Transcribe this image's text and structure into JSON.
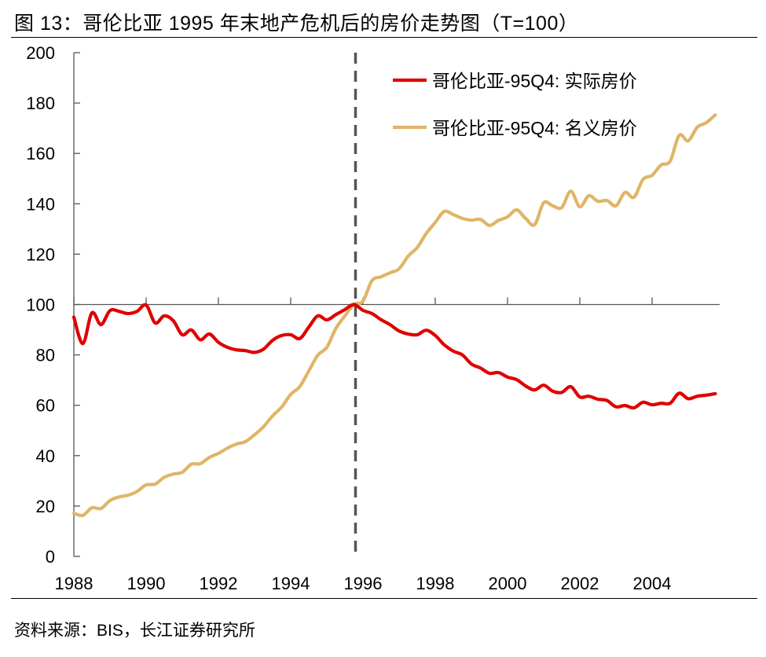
{
  "title": "图 13：哥伦比亚 1995 年末地产危机后的房价走势图（T=100）",
  "source": "资料来源：BIS，长江证券研究所",
  "chart_data": {
    "type": "line",
    "title": "",
    "xlabel": "",
    "ylabel": "",
    "ylim": [
      0,
      200
    ],
    "yticks": [
      "0",
      "20",
      "40",
      "60",
      "80",
      "100",
      "120",
      "140",
      "160",
      "180",
      "200"
    ],
    "xticks": [
      "1988",
      "1990",
      "1992",
      "1994",
      "1996",
      "1998",
      "2000",
      "2002",
      "2004"
    ],
    "x_axis_crosses_y_at": 100,
    "reference_line": {
      "x": "1995Q4",
      "style": "dashed",
      "color": "#555555"
    },
    "grid": false,
    "legend_position": "top-right",
    "x": [
      "1988Q1",
      "1988Q2",
      "1988Q3",
      "1988Q4",
      "1989Q1",
      "1989Q2",
      "1989Q3",
      "1989Q4",
      "1990Q1",
      "1990Q2",
      "1990Q3",
      "1990Q4",
      "1991Q1",
      "1991Q2",
      "1991Q3",
      "1991Q4",
      "1992Q1",
      "1992Q2",
      "1992Q3",
      "1992Q4",
      "1993Q1",
      "1993Q2",
      "1993Q3",
      "1993Q4",
      "1994Q1",
      "1994Q2",
      "1994Q3",
      "1994Q4",
      "1995Q1",
      "1995Q2",
      "1995Q3",
      "1995Q4",
      "1996Q1",
      "1996Q2",
      "1996Q3",
      "1996Q4",
      "1997Q1",
      "1997Q2",
      "1997Q3",
      "1997Q4",
      "1998Q1",
      "1998Q2",
      "1998Q3",
      "1998Q4",
      "1999Q1",
      "1999Q2",
      "1999Q3",
      "1999Q4",
      "2000Q1",
      "2000Q2",
      "2000Q3",
      "2000Q4",
      "2001Q1",
      "2001Q2",
      "2001Q3",
      "2001Q4",
      "2002Q1",
      "2002Q2",
      "2002Q3",
      "2002Q4",
      "2003Q1",
      "2003Q2",
      "2003Q3",
      "2003Q4",
      "2004Q1",
      "2004Q2",
      "2004Q3",
      "2004Q4",
      "2005Q1",
      "2005Q2",
      "2005Q3",
      "2005Q4"
    ],
    "series": [
      {
        "name": "哥伦比亚-95Q4: 实际房价",
        "color": "#E00000",
        "values": [
          95,
          84.5,
          96.7,
          92,
          97.6,
          97.3,
          96.4,
          97.3,
          99.8,
          92.7,
          95.5,
          93.6,
          88,
          89.9,
          86,
          88.3,
          85,
          83,
          82,
          81.7,
          81,
          82.3,
          85.8,
          87.7,
          88,
          86.5,
          91,
          95.5,
          93.9,
          96,
          98,
          100,
          97.7,
          96.4,
          94,
          92,
          89.5,
          88.3,
          88,
          89.8,
          87.7,
          84,
          81.5,
          80,
          76.4,
          74.8,
          72.7,
          73,
          71.2,
          70.2,
          67.7,
          66.1,
          68,
          65.6,
          65.1,
          67.4,
          63.3,
          63.6,
          62.4,
          61.9,
          59.4,
          59.9,
          59,
          61.2,
          60.2,
          60.8,
          60.8,
          64.8,
          62.6,
          63.6,
          64,
          64.6
        ]
      },
      {
        "name": "哥伦比亚-95Q4: 名义房价",
        "color": "#DFB567",
        "values": [
          17.1,
          16.3,
          19.3,
          19,
          22.2,
          23.6,
          24.3,
          25.8,
          28.4,
          28.7,
          31.4,
          32.7,
          33.4,
          36.6,
          36.8,
          39.3,
          40.9,
          43,
          44.6,
          45.6,
          48.3,
          51.5,
          55.8,
          59.3,
          64.3,
          67.4,
          73.6,
          79.9,
          83,
          90.5,
          95.5,
          100,
          101.4,
          109.5,
          111,
          112.6,
          114.2,
          119.2,
          122.6,
          128.2,
          132.6,
          137,
          135.7,
          134.2,
          133.5,
          133.8,
          131.4,
          133.4,
          134.8,
          137.6,
          134.2,
          131.7,
          140.4,
          139.2,
          138.5,
          145,
          138.8,
          143.2,
          141,
          141.3,
          139.2,
          144.5,
          142.6,
          149.7,
          151.3,
          155.4,
          156.9,
          167.2,
          165,
          170.4,
          172.2,
          175.3
        ]
      }
    ]
  }
}
